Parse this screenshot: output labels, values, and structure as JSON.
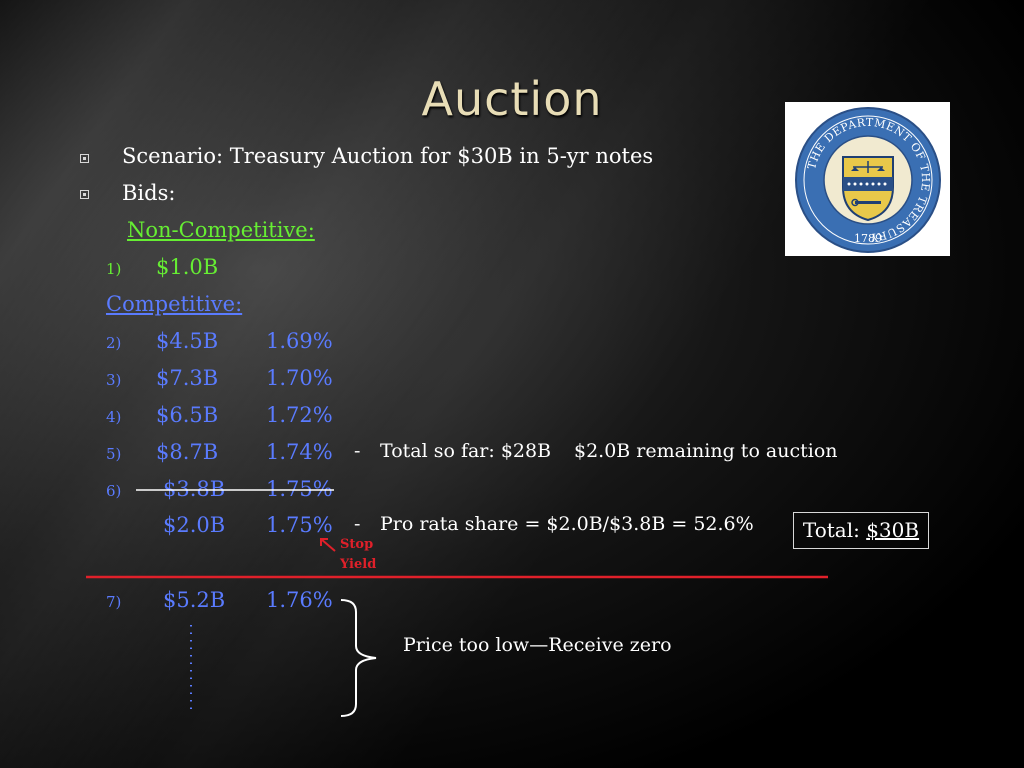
{
  "slide": {
    "title": "Auction",
    "bullets": [
      "Scenario: Treasury Auction for $30B in 5-yr notes",
      "Bids:"
    ],
    "noncompetitive_heading": "Non-Competitive:",
    "competitive_heading": "Competitive:",
    "bids": [
      {
        "num": "1)",
        "amount": "$1.0B",
        "rate": ""
      },
      {
        "num": "2)",
        "amount": "$4.5B",
        "rate": "1.69%"
      },
      {
        "num": "3)",
        "amount": "$7.3B",
        "rate": "1.70%"
      },
      {
        "num": "4)",
        "amount": "$6.5B",
        "rate": "1.72%"
      },
      {
        "num": "5)",
        "amount": "$8.7B",
        "rate": "1.74%"
      },
      {
        "num": "6)",
        "amount": "$3.8B",
        "rate": "1.75%"
      },
      {
        "num": "",
        "amount": "$2.0B",
        "rate": "1.75%"
      },
      {
        "num": "7)",
        "amount": "$5.2B",
        "rate": "1.76%"
      }
    ],
    "note_dash": "-",
    "note_total": "Total so far: $28B",
    "note_remaining": "$2.0B remaining to auction",
    "note_prorata": "Pro rata share = $2.0B/$3.8B = 52.6%",
    "stop_yield": [
      "Stop",
      "Yield"
    ],
    "total_label": "Total:",
    "total_value": "$30B",
    "price_note": "Price too low—Receive zero",
    "logo": {
      "ring_text": "THE DEPARTMENT OF THE TREASURY",
      "year": "1789"
    },
    "colors": {
      "green": "#66ee33",
      "blue": "#5a7bff",
      "red": "#e0202a",
      "title": "#e8ddb6"
    }
  }
}
